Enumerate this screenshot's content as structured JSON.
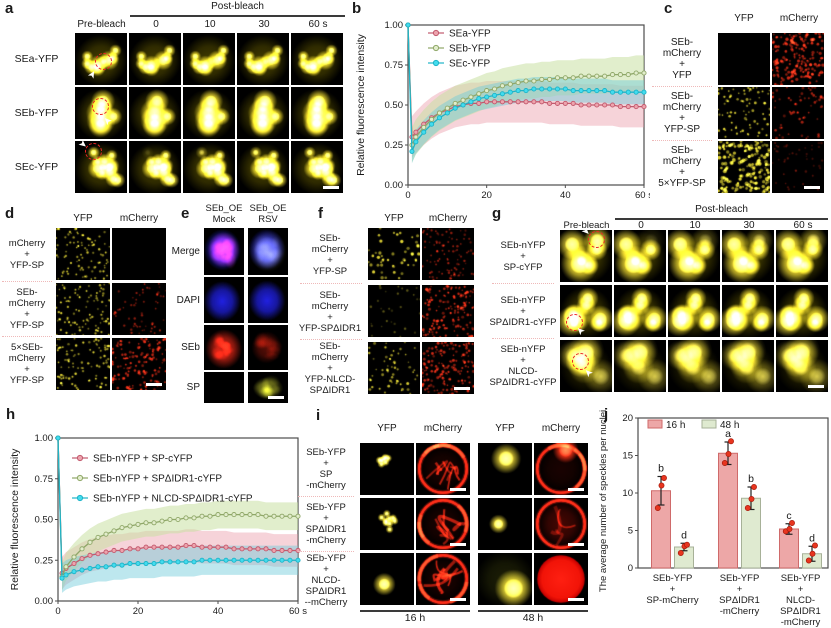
{
  "icons": {
    "bleach_arrow": "➤"
  },
  "panels": {
    "a": {
      "label": "a",
      "pre_bleach": "Pre-bleach",
      "post_bleach": "Post-bleach",
      "time_ticks": [
        "0",
        "10",
        "30",
        "60 s"
      ],
      "rows": [
        "SEa-YFP",
        "SEb-YFP",
        "SEc-YFP"
      ]
    },
    "b": {
      "label": "b"
    },
    "c": {
      "label": "c",
      "col_headers": [
        "YFP",
        "mCherry"
      ],
      "rows": [
        "SEb-\nmCherry\n+\nYFP",
        "SEb-\nmCherry\n+\nYFP-SP",
        "SEb-\nmCherry\n+\n5×YFP-SP"
      ]
    },
    "d": {
      "label": "d",
      "col_headers": [
        "YFP",
        "mCherry"
      ],
      "rows": [
        "mCherry\n+\nYFP-SP",
        "SEb-\nmCherry\n+\nYFP-SP",
        "5×SEb-\nmCherry\n+\nYFP-SP"
      ]
    },
    "e": {
      "label": "e",
      "col_headers": [
        "SEb_OE\nMock",
        "SEb_OE\nRSV"
      ],
      "rows": [
        "Merge",
        "DAPI",
        "SEb",
        "SP"
      ]
    },
    "f": {
      "label": "f",
      "col_headers": [
        "YFP",
        "mCherry"
      ],
      "rows": [
        "SEb-\nmCherry\n+\nYFP-SP",
        "SEb-\nmCherry\n+\nYFP-SPΔIDR1",
        "SEb-\nmCherry\n+\nYFP-NLCD-\nSPΔIDR1"
      ]
    },
    "g": {
      "label": "g",
      "pre_bleach": "Pre-bleach",
      "post_bleach": "Post-bleach",
      "time_ticks": [
        "0",
        "10",
        "30",
        "60 s"
      ],
      "rows": [
        "SEb-nYFP\n+\nSP-cYFP",
        "SEb-nYFP\n+\nSPΔIDR1-cYFP",
        "SEb-nYFP\n+\nNLCD-\nSPΔIDR1-cYFP"
      ]
    },
    "h": {
      "label": "h"
    },
    "i": {
      "label": "i",
      "col_headers": [
        "YFP",
        "mCherry",
        "YFP",
        "mCherry"
      ],
      "rows": [
        "SEb-YFP\n+\nSP\n-mCherry",
        "SEb-YFP\n+\nSPΔIDR1\n-mCherry",
        "SEb-YFP\n+\nNLCD-\nSPΔIDR1\n--mCherry"
      ],
      "group_labels": [
        "16 h",
        "48 h"
      ]
    },
    "j": {
      "label": "j"
    }
  },
  "chart_data": [
    {
      "id": "b",
      "type": "line",
      "ylabel": "Relative fluorescence intensity",
      "ylim": [
        0,
        1
      ],
      "xlim": [
        0,
        60
      ],
      "yticks": [
        "0.00",
        "0.25",
        "0.50",
        "0.75",
        "1.00"
      ],
      "xticks": [
        0,
        20,
        40,
        60
      ],
      "xtick_labels": [
        "0",
        "20",
        "40",
        "60 s"
      ],
      "legend_position": "top-left",
      "grid": false,
      "x": [
        0,
        1,
        2,
        4,
        6,
        8,
        10,
        12,
        14,
        16,
        18,
        20,
        22,
        24,
        26,
        28,
        30,
        32,
        34,
        36,
        38,
        40,
        42,
        44,
        46,
        48,
        50,
        52,
        54,
        56,
        58,
        60
      ],
      "series": [
        {
          "name": "SEa-YFP",
          "line": "#c25a6e",
          "fill": "#eda3ad",
          "band": "#e8919f",
          "band_opacity": 0.4,
          "spread": 0.13,
          "values": [
            1.0,
            0.3,
            0.33,
            0.38,
            0.42,
            0.45,
            0.47,
            0.49,
            0.5,
            0.51,
            0.51,
            0.52,
            0.52,
            0.52,
            0.52,
            0.52,
            0.52,
            0.52,
            0.52,
            0.51,
            0.51,
            0.51,
            0.51,
            0.5,
            0.5,
            0.5,
            0.5,
            0.5,
            0.49,
            0.49,
            0.49,
            0.49
          ]
        },
        {
          "name": "SEb-YFP",
          "line": "#8fa768",
          "fill": "#e2edcc",
          "band": "#c9e0a2",
          "band_opacity": 0.55,
          "spread": 0.11,
          "values": [
            1.0,
            0.25,
            0.3,
            0.36,
            0.41,
            0.45,
            0.48,
            0.51,
            0.53,
            0.55,
            0.57,
            0.59,
            0.6,
            0.62,
            0.63,
            0.64,
            0.65,
            0.65,
            0.66,
            0.66,
            0.67,
            0.67,
            0.67,
            0.68,
            0.68,
            0.68,
            0.68,
            0.69,
            0.69,
            0.69,
            0.7,
            0.7
          ]
        },
        {
          "name": "SEc-YFP",
          "line": "#1eb4c8",
          "fill": "#43dcee",
          "band": "#6cc9d9",
          "band_opacity": 0.45,
          "spread": 0.075,
          "values": [
            1.0,
            0.21,
            0.27,
            0.33,
            0.38,
            0.42,
            0.45,
            0.48,
            0.5,
            0.52,
            0.54,
            0.55,
            0.56,
            0.57,
            0.58,
            0.59,
            0.59,
            0.6,
            0.6,
            0.6,
            0.6,
            0.6,
            0.59,
            0.59,
            0.59,
            0.59,
            0.59,
            0.58,
            0.58,
            0.58,
            0.58,
            0.58
          ]
        }
      ]
    },
    {
      "id": "h",
      "type": "line",
      "ylabel": "Relative fluorescence intensity",
      "ylim": [
        0,
        1
      ],
      "xlim": [
        0,
        60
      ],
      "yticks": [
        "0.00",
        "0.25",
        "0.50",
        "0.75",
        "1.00"
      ],
      "xticks": [
        0,
        20,
        40,
        60
      ],
      "xtick_labels": [
        "0",
        "20",
        "40",
        "60 s"
      ],
      "legend_position": "top-left",
      "grid": false,
      "x": [
        0,
        1,
        2,
        4,
        6,
        8,
        10,
        12,
        14,
        16,
        18,
        20,
        22,
        24,
        26,
        28,
        30,
        32,
        34,
        36,
        38,
        40,
        42,
        44,
        46,
        48,
        50,
        52,
        54,
        56,
        58,
        60
      ],
      "series": [
        {
          "name": "SEb-nYFP + SP-cYFP",
          "line": "#c25a6e",
          "fill": "#eda3ad",
          "band": "#e8919f",
          "band_opacity": 0.4,
          "spread": 0.1,
          "values": [
            1.0,
            0.17,
            0.2,
            0.23,
            0.26,
            0.28,
            0.29,
            0.3,
            0.31,
            0.31,
            0.32,
            0.32,
            0.33,
            0.33,
            0.33,
            0.33,
            0.33,
            0.34,
            0.34,
            0.33,
            0.33,
            0.33,
            0.33,
            0.32,
            0.32,
            0.32,
            0.32,
            0.32,
            0.31,
            0.31,
            0.31,
            0.31
          ]
        },
        {
          "name": "SEb-nYFP + SPΔIDR1-cYFP",
          "line": "#8fa768",
          "fill": "#e2edcc",
          "band": "#c9e0a2",
          "band_opacity": 0.55,
          "spread": 0.085,
          "values": [
            1.0,
            0.15,
            0.21,
            0.27,
            0.32,
            0.36,
            0.39,
            0.41,
            0.43,
            0.45,
            0.46,
            0.47,
            0.48,
            0.48,
            0.49,
            0.5,
            0.5,
            0.51,
            0.51,
            0.52,
            0.52,
            0.53,
            0.53,
            0.53,
            0.53,
            0.53,
            0.53,
            0.52,
            0.52,
            0.52,
            0.52,
            0.52
          ]
        },
        {
          "name": "SEb-nYFP + NLCD-SPΔIDR1-cYFP",
          "line": "#1eb4c8",
          "fill": "#43dcee",
          "band": "#6cc9d9",
          "band_opacity": 0.45,
          "spread": 0.09,
          "values": [
            1.0,
            0.14,
            0.16,
            0.18,
            0.19,
            0.2,
            0.21,
            0.21,
            0.22,
            0.22,
            0.23,
            0.23,
            0.23,
            0.23,
            0.24,
            0.24,
            0.24,
            0.24,
            0.24,
            0.25,
            0.25,
            0.25,
            0.25,
            0.25,
            0.25,
            0.25,
            0.25,
            0.25,
            0.25,
            0.25,
            0.25,
            0.25
          ]
        }
      ]
    },
    {
      "id": "j",
      "type": "bar",
      "ylabel": "The average number of speckles per nuclei",
      "ylim": [
        0,
        20
      ],
      "yticks": [
        0,
        5,
        10,
        15,
        20
      ],
      "categories": [
        "SEb-YFP\n+\nSP-mCherry",
        "SEb-YFP\n+\nSPΔIDR1\n-mCherry",
        "SEb-YFP\n+\nNLCD-\nSPΔIDR1\n-mCherry"
      ],
      "point_color": "#e8351f",
      "series": [
        {
          "name": "16 h",
          "fill": "#eda7a7",
          "stroke": "#cf6a6a",
          "values": [
            10.3,
            15.3,
            5.2
          ],
          "errors": [
            1.9,
            1.5,
            0.7
          ],
          "letters": [
            "b",
            "a",
            "c"
          ],
          "points": [
            [
              8.0,
              11.0,
              12.0
            ],
            [
              14.0,
              15.2,
              16.9
            ],
            [
              4.9,
              5.2,
              6.0
            ]
          ]
        },
        {
          "name": "48 h",
          "fill": "#dfead0",
          "stroke": "#a7b198",
          "values": [
            2.8,
            9.3,
            1.9
          ],
          "errors": [
            0.5,
            1.5,
            1.0
          ],
          "letters": [
            "d",
            "b",
            "d"
          ],
          "points": [
            [
              2.0,
              2.9,
              3.1
            ],
            [
              8.0,
              9.2,
              10.8
            ],
            [
              1.0,
              1.9,
              3.0
            ]
          ]
        }
      ]
    }
  ]
}
